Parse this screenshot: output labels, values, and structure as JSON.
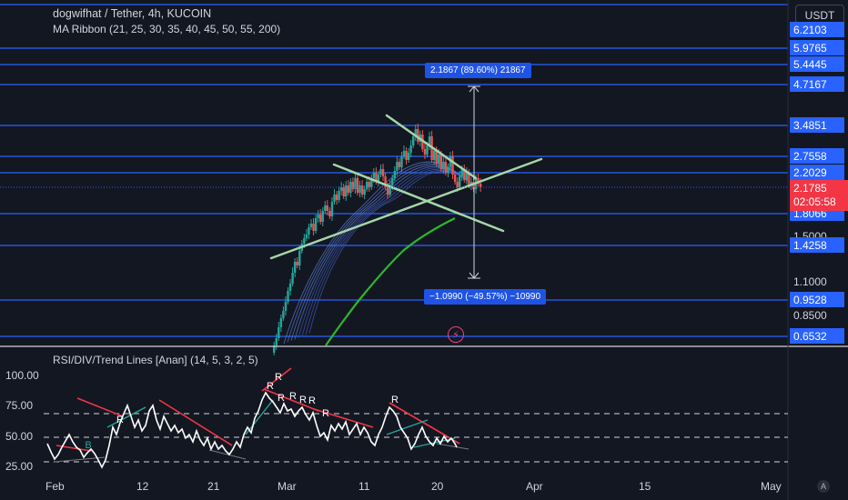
{
  "header": {
    "title": "dogwifhat / Tether, 4h, KUCOIN",
    "indicator": "MA Ribbon (21, 25, 30, 35, 40, 45, 50, 55, 200)",
    "currency_button": "USDT"
  },
  "rsi_panel": {
    "title": "RSI/DIV/Trend Lines [Anan] (14, 5, 3, 2, 5)",
    "ticks": [
      "100.00",
      "75.00",
      "50.00",
      "25.00"
    ],
    "divergence_labels": [
      "R",
      "R",
      "R",
      "R",
      "R",
      "R",
      "R",
      "R",
      "R"
    ],
    "bull_label": "B"
  },
  "price_axis": {
    "blue_tags": [
      "6.2103",
      "5.9765",
      "5.4445",
      "4.7167",
      "3.4851",
      "2.7558",
      "2.2029",
      "1.8066",
      "1.4258",
      "0.9528",
      "0.6532"
    ],
    "plain_ticks": [
      "1.1000",
      "0.8500"
    ],
    "hidden_tick": "1.5000",
    "current_price": "2.1785",
    "countdown": "02:05:58"
  },
  "measurements": {
    "up": "2.1867 (89.60%) 21867",
    "down": "−1.0990 (−49.57%) −10990"
  },
  "time_axis": [
    "Feb",
    "12",
    "21",
    "Mar",
    "11",
    "20",
    "Apr",
    "15",
    "May"
  ],
  "colors": {
    "background": "#131722",
    "level_line": "#2962ff",
    "bull_candle": "#26a69a",
    "bear_candle": "#ef5350",
    "ma200": "#2db82d",
    "triangle_lines": "#a5d6a7",
    "current_price_tag": "#f23645",
    "rsi_line": "#ffffff",
    "div_bear": "#f23645"
  },
  "chart_data": {
    "type": "candlestick",
    "title": "dogwifhat / Tether, 4h, KUCOIN",
    "x_axis_labels": [
      "Feb",
      "12",
      "21",
      "Mar",
      "11",
      "20",
      "Apr",
      "15",
      "May"
    ],
    "price_levels": [
      6.2103,
      5.9765,
      5.4445,
      4.7167,
      3.4851,
      2.7558,
      2.2029,
      1.8066,
      1.4258,
      0.9528,
      0.6532
    ],
    "current_price": 2.1785,
    "approx_price_path": [
      0.65,
      0.85,
      1.05,
      1.3,
      1.5,
      1.7,
      1.65,
      2.0,
      2.3,
      2.2,
      2.6,
      2.4,
      2.7,
      2.5,
      3.4,
      3.6,
      2.8,
      3.1,
      2.6,
      2.9,
      2.4,
      2.2
    ],
    "rsi_levels": [
      70,
      50,
      30
    ],
    "rsi_range": [
      20,
      100
    ]
  }
}
